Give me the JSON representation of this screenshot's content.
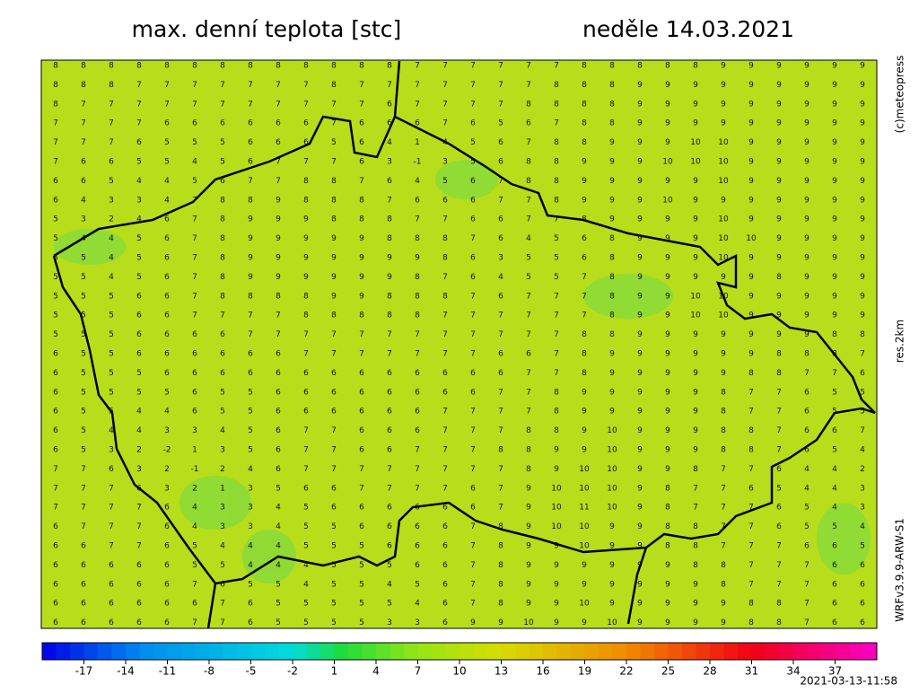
{
  "header": {
    "title": "max. denní teplota [stc]",
    "date": "neděle 14.03.2021"
  },
  "side": {
    "copyright": "(c)meteopress",
    "resolution": "res.2km",
    "model": "WRFv3.9.9-ARW-S1"
  },
  "footer": {
    "timestamp": "2021-03-13-11:58"
  },
  "colorbar": {
    "lim": [
      -20,
      40
    ],
    "ticks": [
      -17,
      -14,
      -11,
      -8,
      -5,
      -2,
      1,
      4,
      7,
      10,
      13,
      16,
      19,
      22,
      25,
      28,
      31,
      34,
      37
    ]
  },
  "grid": [
    [
      8,
      8,
      8,
      8,
      8,
      8,
      8,
      8,
      8,
      8,
      8,
      8,
      8,
      7,
      7,
      7,
      7,
      7,
      7,
      8,
      8,
      8,
      8,
      8,
      9,
      9,
      9,
      9,
      9,
      9
    ],
    [
      8,
      8,
      8,
      7,
      7,
      7,
      7,
      7,
      7,
      7,
      8,
      7,
      7,
      7,
      7,
      7,
      7,
      7,
      8,
      8,
      8,
      9,
      9,
      9,
      9,
      9,
      9,
      9,
      9,
      9
    ],
    [
      8,
      7,
      7,
      7,
      7,
      7,
      7,
      7,
      7,
      7,
      7,
      7,
      6,
      7,
      7,
      7,
      7,
      8,
      8,
      8,
      8,
      9,
      9,
      9,
      9,
      9,
      9,
      9,
      9,
      9
    ],
    [
      7,
      7,
      7,
      7,
      6,
      6,
      6,
      6,
      6,
      6,
      7,
      6,
      6,
      6,
      7,
      6,
      5,
      6,
      7,
      8,
      8,
      9,
      9,
      9,
      9,
      9,
      9,
      9,
      9,
      9
    ],
    [
      7,
      7,
      7,
      6,
      5,
      5,
      5,
      6,
      6,
      6,
      5,
      6,
      4,
      1,
      4,
      5,
      6,
      7,
      8,
      8,
      9,
      9,
      9,
      10,
      10,
      9,
      9,
      9,
      9,
      9
    ],
    [
      7,
      6,
      6,
      5,
      5,
      4,
      5,
      6,
      7,
      7,
      7,
      6,
      3,
      -1,
      3,
      5,
      6,
      8,
      8,
      9,
      9,
      9,
      10,
      10,
      10,
      9,
      9,
      9,
      9,
      9
    ],
    [
      6,
      6,
      5,
      4,
      4,
      5,
      6,
      7,
      7,
      8,
      8,
      7,
      6,
      4,
      5,
      6,
      7,
      8,
      8,
      9,
      9,
      9,
      9,
      9,
      10,
      9,
      9,
      9,
      9,
      9
    ],
    [
      6,
      4,
      3,
      3,
      4,
      7,
      8,
      8,
      9,
      8,
      8,
      8,
      7,
      6,
      6,
      6,
      7,
      7,
      8,
      9,
      9,
      9,
      10,
      9,
      9,
      9,
      9,
      9,
      9,
      9
    ],
    [
      5,
      3,
      2,
      4,
      6,
      7,
      8,
      9,
      9,
      9,
      8,
      8,
      8,
      7,
      7,
      6,
      6,
      7,
      7,
      8,
      9,
      9,
      9,
      9,
      10,
      9,
      9,
      9,
      9,
      9
    ],
    [
      5,
      4,
      4,
      5,
      6,
      7,
      8,
      9,
      9,
      9,
      9,
      9,
      8,
      8,
      8,
      7,
      6,
      4,
      5,
      6,
      8,
      9,
      9,
      9,
      10,
      10,
      9,
      9,
      9,
      9
    ],
    [
      5,
      5,
      4,
      5,
      6,
      7,
      8,
      9,
      9,
      9,
      9,
      9,
      9,
      9,
      8,
      6,
      3,
      5,
      5,
      6,
      8,
      9,
      9,
      9,
      10,
      9,
      9,
      9,
      9,
      9
    ],
    [
      5,
      5,
      4,
      5,
      6,
      7,
      8,
      9,
      9,
      9,
      9,
      9,
      9,
      8,
      7,
      6,
      4,
      5,
      5,
      7,
      8,
      9,
      9,
      9,
      9,
      9,
      8,
      9,
      9,
      9
    ],
    [
      5,
      5,
      5,
      6,
      6,
      7,
      8,
      8,
      8,
      8,
      9,
      9,
      8,
      8,
      8,
      7,
      6,
      7,
      7,
      7,
      8,
      9,
      9,
      10,
      10,
      9,
      9,
      9,
      9,
      9
    ],
    [
      5,
      5,
      5,
      6,
      6,
      7,
      7,
      7,
      7,
      8,
      8,
      8,
      8,
      8,
      7,
      7,
      7,
      7,
      7,
      7,
      8,
      9,
      9,
      10,
      10,
      9,
      9,
      9,
      9,
      9
    ],
    [
      5,
      5,
      5,
      6,
      6,
      6,
      6,
      7,
      7,
      7,
      7,
      7,
      7,
      7,
      7,
      7,
      7,
      7,
      7,
      8,
      8,
      9,
      9,
      9,
      9,
      9,
      9,
      9,
      8,
      8
    ],
    [
      6,
      5,
      5,
      6,
      6,
      6,
      6,
      6,
      6,
      7,
      7,
      7,
      7,
      7,
      7,
      7,
      6,
      6,
      7,
      8,
      9,
      9,
      9,
      9,
      9,
      9,
      8,
      8,
      8,
      7
    ],
    [
      6,
      5,
      5,
      5,
      6,
      6,
      6,
      6,
      6,
      6,
      6,
      6,
      6,
      6,
      6,
      6,
      6,
      7,
      7,
      8,
      9,
      9,
      9,
      9,
      9,
      8,
      8,
      7,
      7,
      6
    ],
    [
      6,
      5,
      5,
      5,
      5,
      6,
      5,
      5,
      6,
      6,
      6,
      6,
      6,
      6,
      6,
      6,
      7,
      7,
      8,
      9,
      9,
      9,
      9,
      9,
      8,
      7,
      7,
      6,
      5,
      5
    ],
    [
      6,
      5,
      5,
      4,
      4,
      6,
      5,
      5,
      6,
      6,
      6,
      6,
      6,
      6,
      7,
      7,
      7,
      7,
      8,
      9,
      9,
      9,
      9,
      9,
      8,
      7,
      7,
      6,
      5,
      5
    ],
    [
      6,
      5,
      4,
      4,
      3,
      3,
      4,
      5,
      6,
      7,
      7,
      6,
      6,
      6,
      7,
      7,
      7,
      8,
      8,
      9,
      10,
      9,
      9,
      9,
      8,
      8,
      7,
      6,
      6,
      7
    ],
    [
      6,
      5,
      3,
      2,
      -2,
      1,
      3,
      5,
      6,
      7,
      7,
      6,
      6,
      7,
      7,
      7,
      8,
      8,
      9,
      9,
      10,
      9,
      9,
      9,
      8,
      8,
      7,
      6,
      5,
      4
    ],
    [
      7,
      7,
      6,
      3,
      2,
      -1,
      2,
      4,
      6,
      7,
      7,
      7,
      7,
      7,
      7,
      7,
      7,
      8,
      9,
      10,
      10,
      9,
      9,
      8,
      7,
      7,
      6,
      4,
      4,
      2
    ],
    [
      7,
      7,
      7,
      6,
      3,
      2,
      1,
      3,
      5,
      6,
      6,
      7,
      7,
      7,
      7,
      6,
      7,
      9,
      10,
      10,
      10,
      9,
      8,
      7,
      7,
      6,
      5,
      4,
      4,
      3
    ],
    [
      7,
      7,
      7,
      7,
      6,
      4,
      3,
      3,
      4,
      5,
      6,
      6,
      6,
      6,
      6,
      6,
      7,
      9,
      10,
      11,
      10,
      9,
      8,
      7,
      7,
      7,
      6,
      5,
      4,
      3
    ],
    [
      6,
      7,
      7,
      7,
      6,
      4,
      3,
      3,
      4,
      5,
      5,
      6,
      6,
      6,
      6,
      7,
      8,
      9,
      10,
      10,
      9,
      9,
      8,
      8,
      7,
      7,
      6,
      5,
      5,
      4
    ],
    [
      6,
      6,
      7,
      7,
      6,
      5,
      4,
      4,
      4,
      5,
      5,
      5,
      6,
      6,
      6,
      7,
      8,
      9,
      9,
      10,
      9,
      9,
      8,
      8,
      7,
      7,
      7,
      6,
      6,
      5
    ],
    [
      6,
      6,
      6,
      6,
      6,
      5,
      5,
      4,
      4,
      4,
      5,
      5,
      5,
      6,
      6,
      7,
      8,
      9,
      9,
      9,
      9,
      9,
      9,
      8,
      8,
      7,
      7,
      7,
      6,
      6
    ],
    [
      6,
      6,
      6,
      6,
      6,
      7,
      6,
      5,
      5,
      4,
      5,
      5,
      4,
      5,
      6,
      7,
      8,
      9,
      9,
      9,
      9,
      9,
      9,
      9,
      8,
      7,
      7,
      7,
      6,
      6
    ],
    [
      6,
      6,
      6,
      6,
      6,
      6,
      7,
      6,
      5,
      5,
      5,
      5,
      5,
      4,
      6,
      7,
      8,
      9,
      9,
      10,
      9,
      9,
      9,
      9,
      9,
      8,
      8,
      7,
      6,
      6
    ],
    [
      6,
      6,
      6,
      6,
      6,
      7,
      7,
      6,
      5,
      5,
      5,
      5,
      3,
      3,
      6,
      9,
      9,
      10,
      9,
      9,
      10,
      9,
      9,
      9,
      9,
      8,
      8,
      7,
      6,
      6
    ]
  ]
}
